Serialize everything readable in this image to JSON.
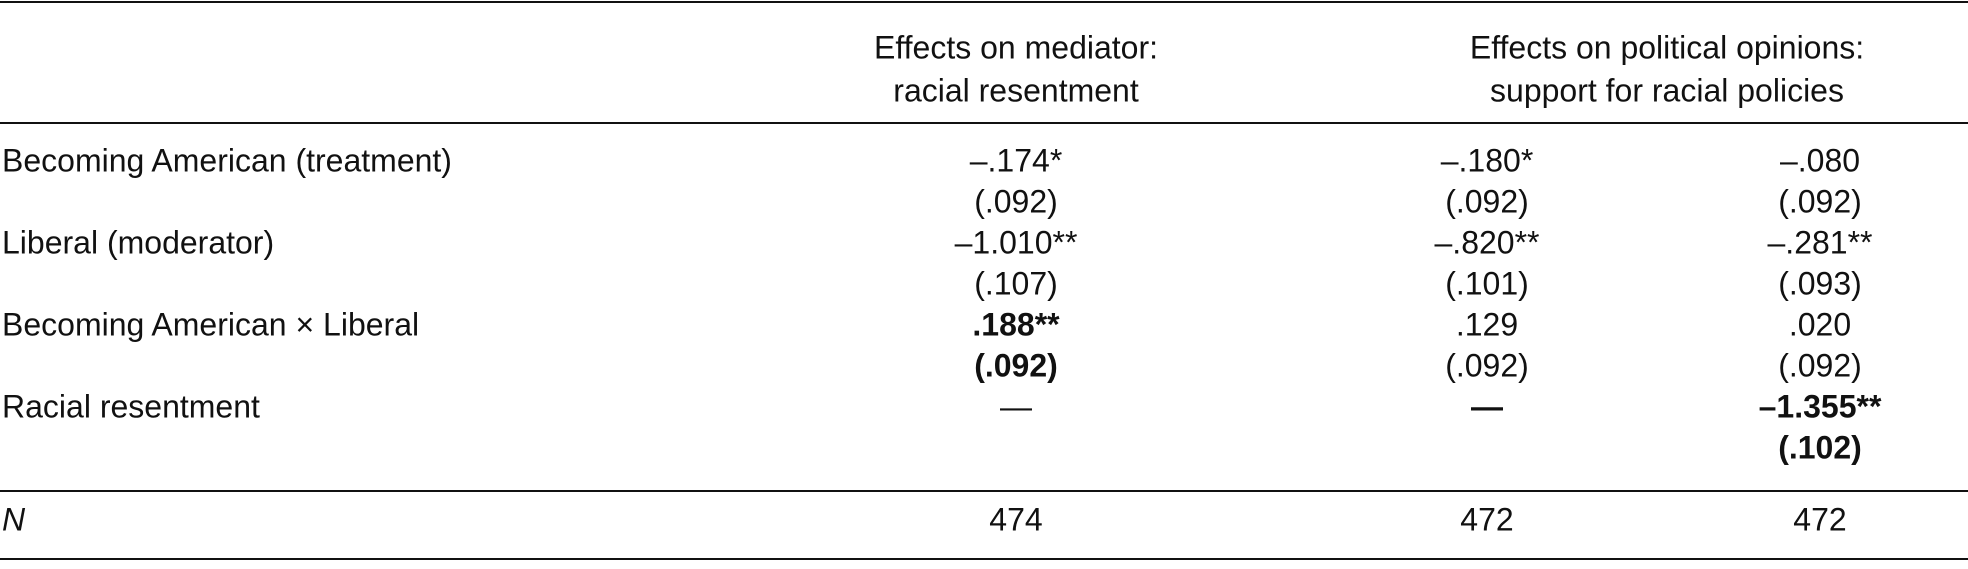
{
  "table": {
    "header": {
      "groups": [
        {
          "lines": [
            "Effects on mediator:",
            "racial resentment"
          ]
        },
        {
          "lines": [
            "Effects on political opinions:",
            "support for racial policies"
          ]
        }
      ]
    },
    "rows": [
      {
        "label": "Becoming American (treatment)",
        "estimates": [
          "–.174*",
          "–.180*",
          "–.080"
        ],
        "ses": [
          "(.092)",
          "(.092)",
          "(.092)"
        ]
      },
      {
        "label": "Liberal (moderator)",
        "estimates": [
          "–1.010**",
          "–.820**",
          "–.281**"
        ],
        "ses": [
          "(.107)",
          "(.101)",
          "(.093)"
        ]
      },
      {
        "label": "Becoming American × Liberal",
        "estimates": [
          {
            "text": ".188**",
            "bold": true
          },
          ".129",
          ".020"
        ],
        "ses": [
          {
            "text": "(.092)",
            "bold": true
          },
          "(.092)",
          "(.092)"
        ]
      },
      {
        "label": "Racial resentment",
        "estimates": [
          "—",
          {
            "text": "—",
            "bold": true
          },
          {
            "text": "–1.355**",
            "bold": true
          }
        ],
        "ses": [
          null,
          null,
          {
            "text": "(.102)",
            "bold": true
          }
        ]
      }
    ],
    "n_row": {
      "label": "N",
      "values": [
        "474",
        "472",
        "472"
      ]
    }
  }
}
